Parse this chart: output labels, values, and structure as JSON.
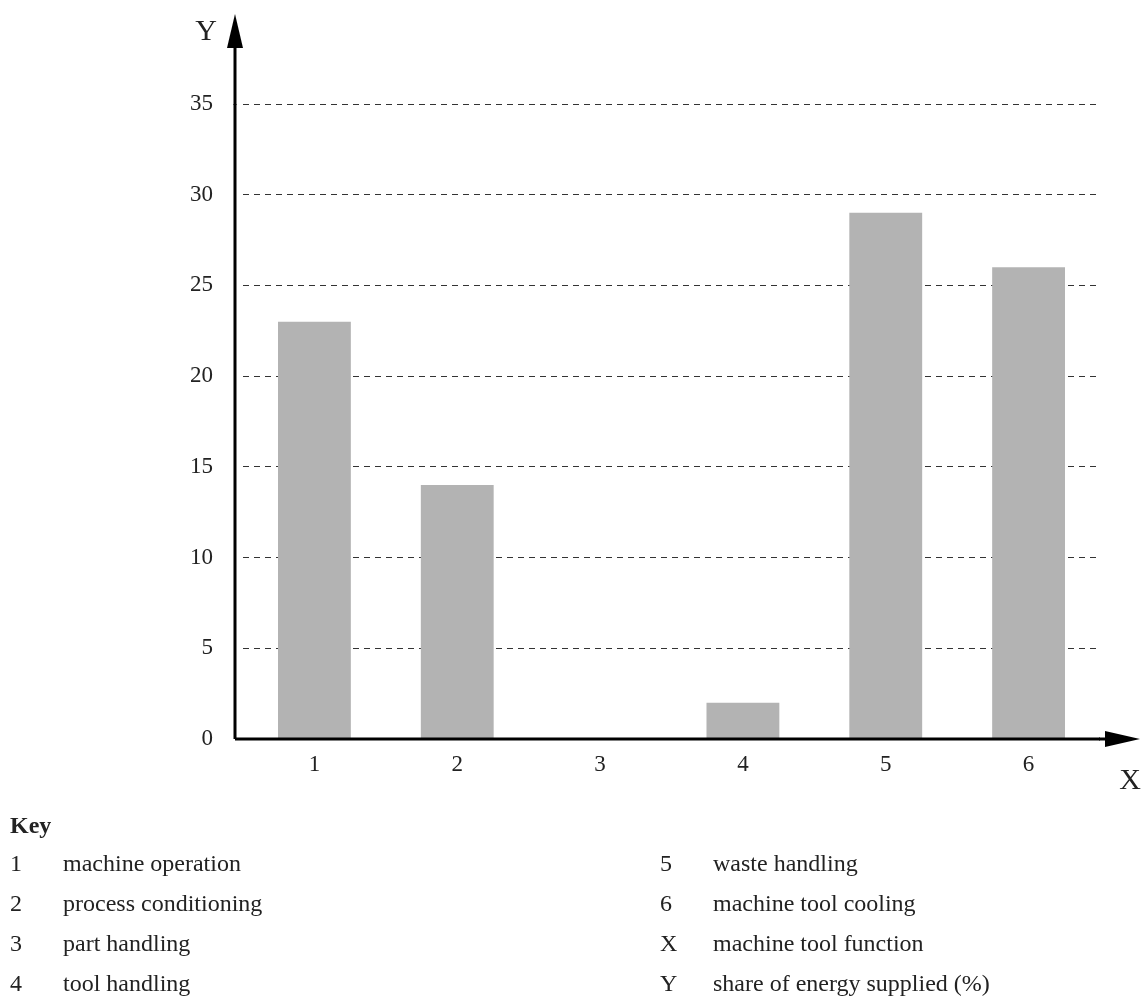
{
  "chart_data": {
    "type": "bar",
    "xlabel": "X",
    "ylabel": "Y",
    "categories": [
      "1",
      "2",
      "3",
      "4",
      "5",
      "6"
    ],
    "values": [
      23,
      14,
      0,
      2,
      29,
      26
    ],
    "color": "#b3b3b3",
    "ylim": [
      0,
      35
    ],
    "yticks": [
      0,
      5,
      10,
      15,
      20,
      25,
      30,
      35
    ],
    "grid": "y",
    "line_style": "dashed",
    "legend": false,
    "annotations": [
      "Key",
      "1 machine operation",
      "2 process conditioning",
      "3 part handling",
      "4 tool handling",
      "5 waste handling",
      "6 machine tool cooling",
      "X machine tool function",
      "Y share of energy supplied (%)"
    ]
  }
}
